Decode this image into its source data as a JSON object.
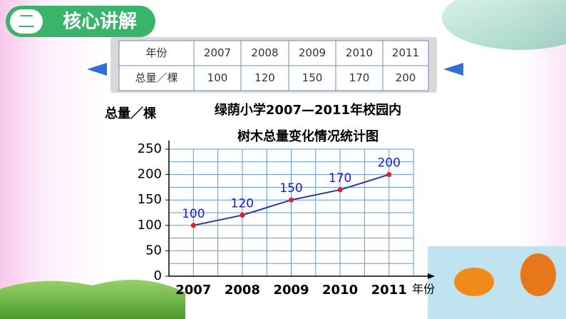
{
  "header": {
    "number": "二",
    "title": "核心讲解"
  },
  "table": {
    "rows": [
      [
        "年份",
        "2007",
        "2008",
        "2009",
        "2010",
        "2011"
      ],
      [
        "总量／棵",
        "100",
        "120",
        "150",
        "170",
        "200"
      ]
    ]
  },
  "chart_data": {
    "type": "line",
    "title": "绿荫小学2007—2011年校园内",
    "subtitle": "树木总量变化情况统计图",
    "y_label": "总量／棵",
    "x_label": "年份",
    "categories": [
      "2007",
      "2008",
      "2009",
      "2010",
      "2011"
    ],
    "series": [
      {
        "name": "总量",
        "color": "#2a35a8",
        "marker_color": "#e02020",
        "label_color": "#1c1cc8",
        "values": [
          100,
          120,
          150,
          170,
          200
        ]
      }
    ],
    "ylim": [
      0,
      250
    ],
    "yticks": [
      0,
      50,
      100,
      150,
      200,
      250
    ],
    "ygrid": [
      25,
      50,
      75,
      100,
      125,
      150,
      175,
      200,
      225,
      250
    ],
    "grid": true,
    "grid_color": "#5b9bd5"
  }
}
